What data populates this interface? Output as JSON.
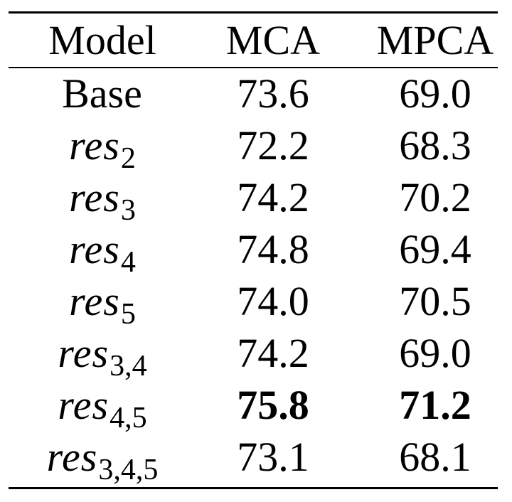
{
  "table": {
    "headers": {
      "model": "Model",
      "mca": "MCA",
      "mpca": "MPCA"
    },
    "rows": [
      {
        "model_text": "Base",
        "model_base": "",
        "model_sub": "",
        "mca": "73.6",
        "mpca": "69.0",
        "bold": false
      },
      {
        "model_text": "",
        "model_base": "res",
        "model_sub": "2",
        "mca": "72.2",
        "mpca": "68.3",
        "bold": false
      },
      {
        "model_text": "",
        "model_base": "res",
        "model_sub": "3",
        "mca": "74.2",
        "mpca": "70.2",
        "bold": false
      },
      {
        "model_text": "",
        "model_base": "res",
        "model_sub": "4",
        "mca": "74.8",
        "mpca": "69.4",
        "bold": false
      },
      {
        "model_text": "",
        "model_base": "res",
        "model_sub": "5",
        "mca": "74.0",
        "mpca": "70.5",
        "bold": false
      },
      {
        "model_text": "",
        "model_base": "res",
        "model_sub": "3,4",
        "mca": "74.2",
        "mpca": "69.0",
        "bold": false
      },
      {
        "model_text": "",
        "model_base": "res",
        "model_sub": "4,5",
        "mca": "75.8",
        "mpca": "71.2",
        "bold": true
      },
      {
        "model_text": "",
        "model_base": "res",
        "model_sub": "3,4,5",
        "mca": "73.1",
        "mpca": "68.1",
        "bold": false
      }
    ]
  }
}
